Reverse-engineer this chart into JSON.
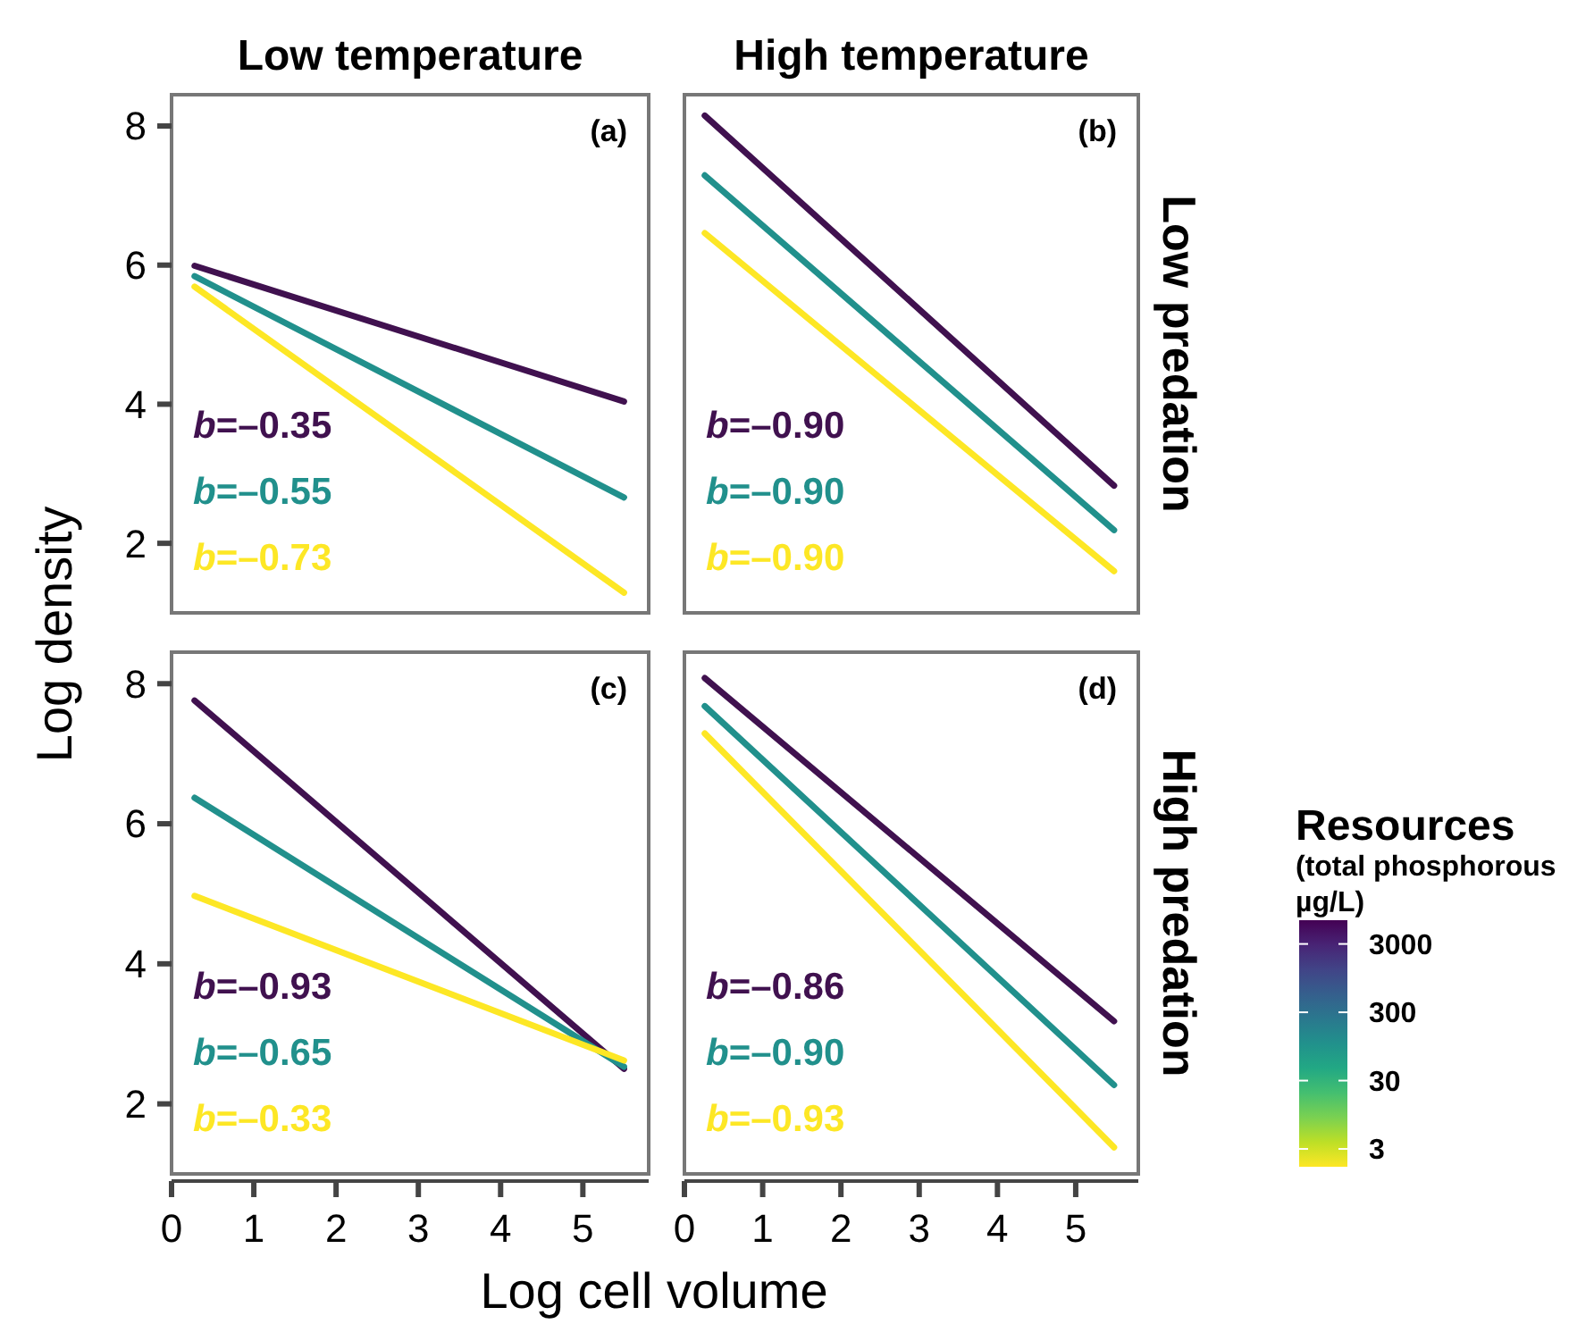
{
  "chart_data": [
    {
      "type": "line",
      "title": "Low temperature",
      "ylabel": "Log density",
      "annotations": [
        "(a)",
        "b=–0.35",
        "b=–0.55",
        "b=–0.73"
      ],
      "xlim": [
        0,
        5.8
      ],
      "ylim": [
        1,
        8.45
      ],
      "yticks": [
        2,
        4,
        6,
        8
      ],
      "tick_labels": "y",
      "legend": false,
      "grid": false,
      "series": [
        {
          "color": "#40114f",
          "x": [
            0.28,
            5.5
          ],
          "values": [
            5.99,
            4.04
          ]
        },
        {
          "color": "#21908c",
          "x": [
            0.28,
            5.5
          ],
          "values": [
            5.84,
            2.66
          ]
        },
        {
          "color": "#fde725",
          "x": [
            0.28,
            5.5
          ],
          "values": [
            5.69,
            1.29
          ]
        }
      ]
    },
    {
      "type": "line",
      "title": "High temperature",
      "annotations": [
        "(b)",
        "b=–0.90",
        "b=–0.90",
        "b=–0.90",
        "Low predation"
      ],
      "xlim": [
        0,
        5.8
      ],
      "ylim": [
        1,
        8.45
      ],
      "tick_labels": false,
      "legend": false,
      "grid": false,
      "series": [
        {
          "color": "#40114f",
          "x": [
            0.26,
            5.49
          ],
          "values": [
            8.15,
            2.83
          ]
        },
        {
          "color": "#21908c",
          "x": [
            0.26,
            5.49
          ],
          "values": [
            7.29,
            2.19
          ]
        },
        {
          "color": "#fde725",
          "x": [
            0.26,
            5.49
          ],
          "values": [
            6.46,
            1.6
          ]
        }
      ]
    },
    {
      "type": "line",
      "xlabel": "Log cell volume",
      "annotations": [
        "(c)",
        "b=–0.93",
        "b=–0.65",
        "b=–0.33"
      ],
      "xlim": [
        0,
        5.8
      ],
      "xticks": [
        0,
        1,
        2,
        3,
        4,
        5
      ],
      "ylim": [
        1,
        8.45
      ],
      "yticks": [
        2,
        4,
        6,
        8
      ],
      "legend": false,
      "grid": false,
      "series": [
        {
          "color": "#40114f",
          "x": [
            0.28,
            5.5
          ],
          "values": [
            7.76,
            2.5
          ]
        },
        {
          "color": "#21908c",
          "x": [
            0.28,
            5.5
          ],
          "values": [
            6.37,
            2.53
          ]
        },
        {
          "color": "#fde725",
          "x": [
            0.28,
            5.5
          ],
          "values": [
            4.97,
            2.62
          ]
        }
      ]
    },
    {
      "type": "line",
      "annotations": [
        "(d)",
        "b=–0.86",
        "b=–0.90",
        "b=–0.93",
        "High predation"
      ],
      "xlim": [
        0,
        5.8
      ],
      "xticks": [
        0,
        1,
        2,
        3,
        4,
        5
      ],
      "ylim": [
        1,
        8.45
      ],
      "tick_labels": "x",
      "legend": false,
      "grid": false,
      "clabel": "Resources\n(total phosphorous\nµg/L)",
      "cticks": [
        {
          "value": null,
          "label": "3"
        },
        {
          "value": null,
          "label": "30"
        },
        {
          "value": null,
          "label": "300"
        },
        {
          "value": null,
          "label": "3000"
        }
      ],
      "series": [
        {
          "color": "#40114f",
          "x": [
            0.26,
            5.49
          ],
          "values": [
            8.08,
            3.18
          ]
        },
        {
          "color": "#21908c",
          "x": [
            0.26,
            5.49
          ],
          "values": [
            7.68,
            2.27
          ]
        },
        {
          "color": "#fde725",
          "x": [
            0.26,
            5.49
          ],
          "values": [
            7.29,
            1.38
          ]
        }
      ]
    }
  ]
}
